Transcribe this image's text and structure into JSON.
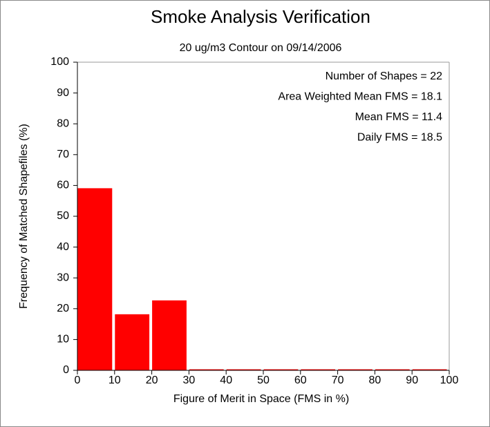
{
  "chart_data": {
    "type": "histogram",
    "title": "Smoke Analysis Verification",
    "subtitle": "20 ug/m3 Contour on 09/14/2006",
    "x_label": "Figure of Merit in Space (FMS in %)",
    "y_label": "Frequency of Matched Shapefiles (%)",
    "annotations": [
      "Number of Shapes = 22",
      "Area Weighted Mean FMS = 18.1",
      "Mean FMS = 11.4",
      "Daily FMS = 18.5"
    ],
    "bins": [
      0,
      10,
      20,
      30,
      40,
      50,
      60,
      70,
      80,
      90,
      100
    ],
    "values": [
      59.1,
      18.2,
      22.7,
      0,
      0,
      0,
      0,
      0,
      0,
      0
    ],
    "color": "#ff0000",
    "xlim": [
      0,
      100
    ],
    "xticks": [
      0,
      10,
      20,
      30,
      40,
      50,
      60,
      70,
      80,
      90,
      100
    ],
    "ylim": [
      0,
      100
    ],
    "yticks": [
      0,
      10,
      20,
      30,
      40,
      50,
      60,
      70,
      80,
      90,
      100
    ]
  }
}
